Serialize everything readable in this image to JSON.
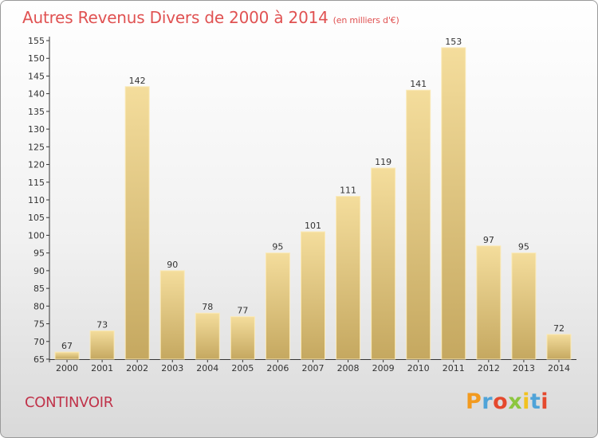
{
  "header": {
    "title": "Autres Revenus Divers de 2000 à 2014",
    "unit": "(en milliers d'€)"
  },
  "footer": {
    "town": "CONTINVOIR",
    "logo": "Proxiti"
  },
  "colors": {
    "title": "#e05252",
    "bar_light": "#f2da98",
    "bar_dark": "#c9ac63",
    "axis": "#333333"
  },
  "chart_data": {
    "type": "bar",
    "title": "Autres Revenus Divers de 2000 à 2014",
    "subtitle": "(en milliers d'€)",
    "xlabel": "",
    "ylabel": "",
    "categories": [
      "2000",
      "2001",
      "2002",
      "2003",
      "2004",
      "2005",
      "2006",
      "2007",
      "2008",
      "2009",
      "2010",
      "2011",
      "2012",
      "2013",
      "2014"
    ],
    "values": [
      67,
      73,
      142,
      90,
      78,
      77,
      95,
      101,
      111,
      119,
      141,
      153,
      97,
      95,
      72
    ],
    "ylim": [
      65,
      155
    ],
    "yticks": [
      65,
      70,
      75,
      80,
      85,
      90,
      95,
      100,
      105,
      110,
      115,
      120,
      125,
      130,
      135,
      140,
      145,
      150,
      155
    ],
    "grid": false,
    "legend": "none"
  }
}
